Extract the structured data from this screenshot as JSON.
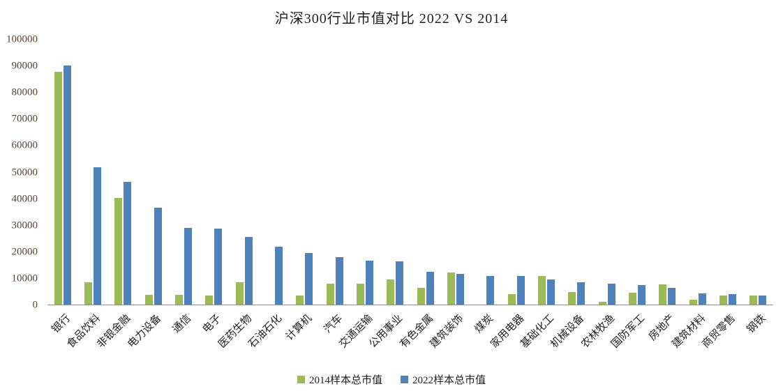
{
  "title": "沪深300行业市值对比 2022 VS 2014",
  "colors": {
    "series_2014": "#9bbb59",
    "series_2022": "#4f81bd",
    "axis_text": "#5a4439",
    "category_text": "#1f1f1f",
    "axis_line": "#8f8f8f"
  },
  "legend": {
    "item_2014": "2014样本总市值",
    "item_2022": "2022样本总市值"
  },
  "chart_data": {
    "type": "bar",
    "title": "沪深300行业市值对比 2022 VS 2014",
    "xlabel": "",
    "ylabel": "",
    "ylim": [
      0,
      100000
    ],
    "yticks": [
      0,
      10000,
      20000,
      30000,
      40000,
      50000,
      60000,
      70000,
      80000,
      90000,
      100000
    ],
    "grid": false,
    "legend_position": "bottom",
    "categories": [
      "银行",
      "食品饮料",
      "非银金融",
      "电力设备",
      "通信",
      "电子",
      "医药生物",
      "石油石化",
      "计算机",
      "汽车",
      "交通运输",
      "公用事业",
      "有色金属",
      "建筑装饰",
      "煤炭",
      "家用电器",
      "基础化工",
      "机械设备",
      "农林牧渔",
      "国防军工",
      "房地产",
      "建筑材料",
      "商贸零售",
      "钢铁"
    ],
    "series": [
      {
        "name": "2014样本总市值",
        "color": "#9bbb59",
        "values": [
          88000,
          8500,
          40200,
          3600,
          3600,
          3400,
          8300,
          0,
          3400,
          8000,
          7900,
          9600,
          6400,
          12200,
          0,
          3900,
          10700,
          4800,
          1100,
          4600,
          7600,
          1900,
          3300,
          3300
        ]
      },
      {
        "name": "2022样本总市值",
        "color": "#4f81bd",
        "values": [
          90200,
          51800,
          46200,
          36500,
          29000,
          28700,
          25500,
          21800,
          19500,
          18000,
          16700,
          16200,
          12300,
          11700,
          10800,
          10800,
          9500,
          8400,
          8000,
          7400,
          6200,
          4300,
          3900,
          3300
        ]
      }
    ]
  }
}
